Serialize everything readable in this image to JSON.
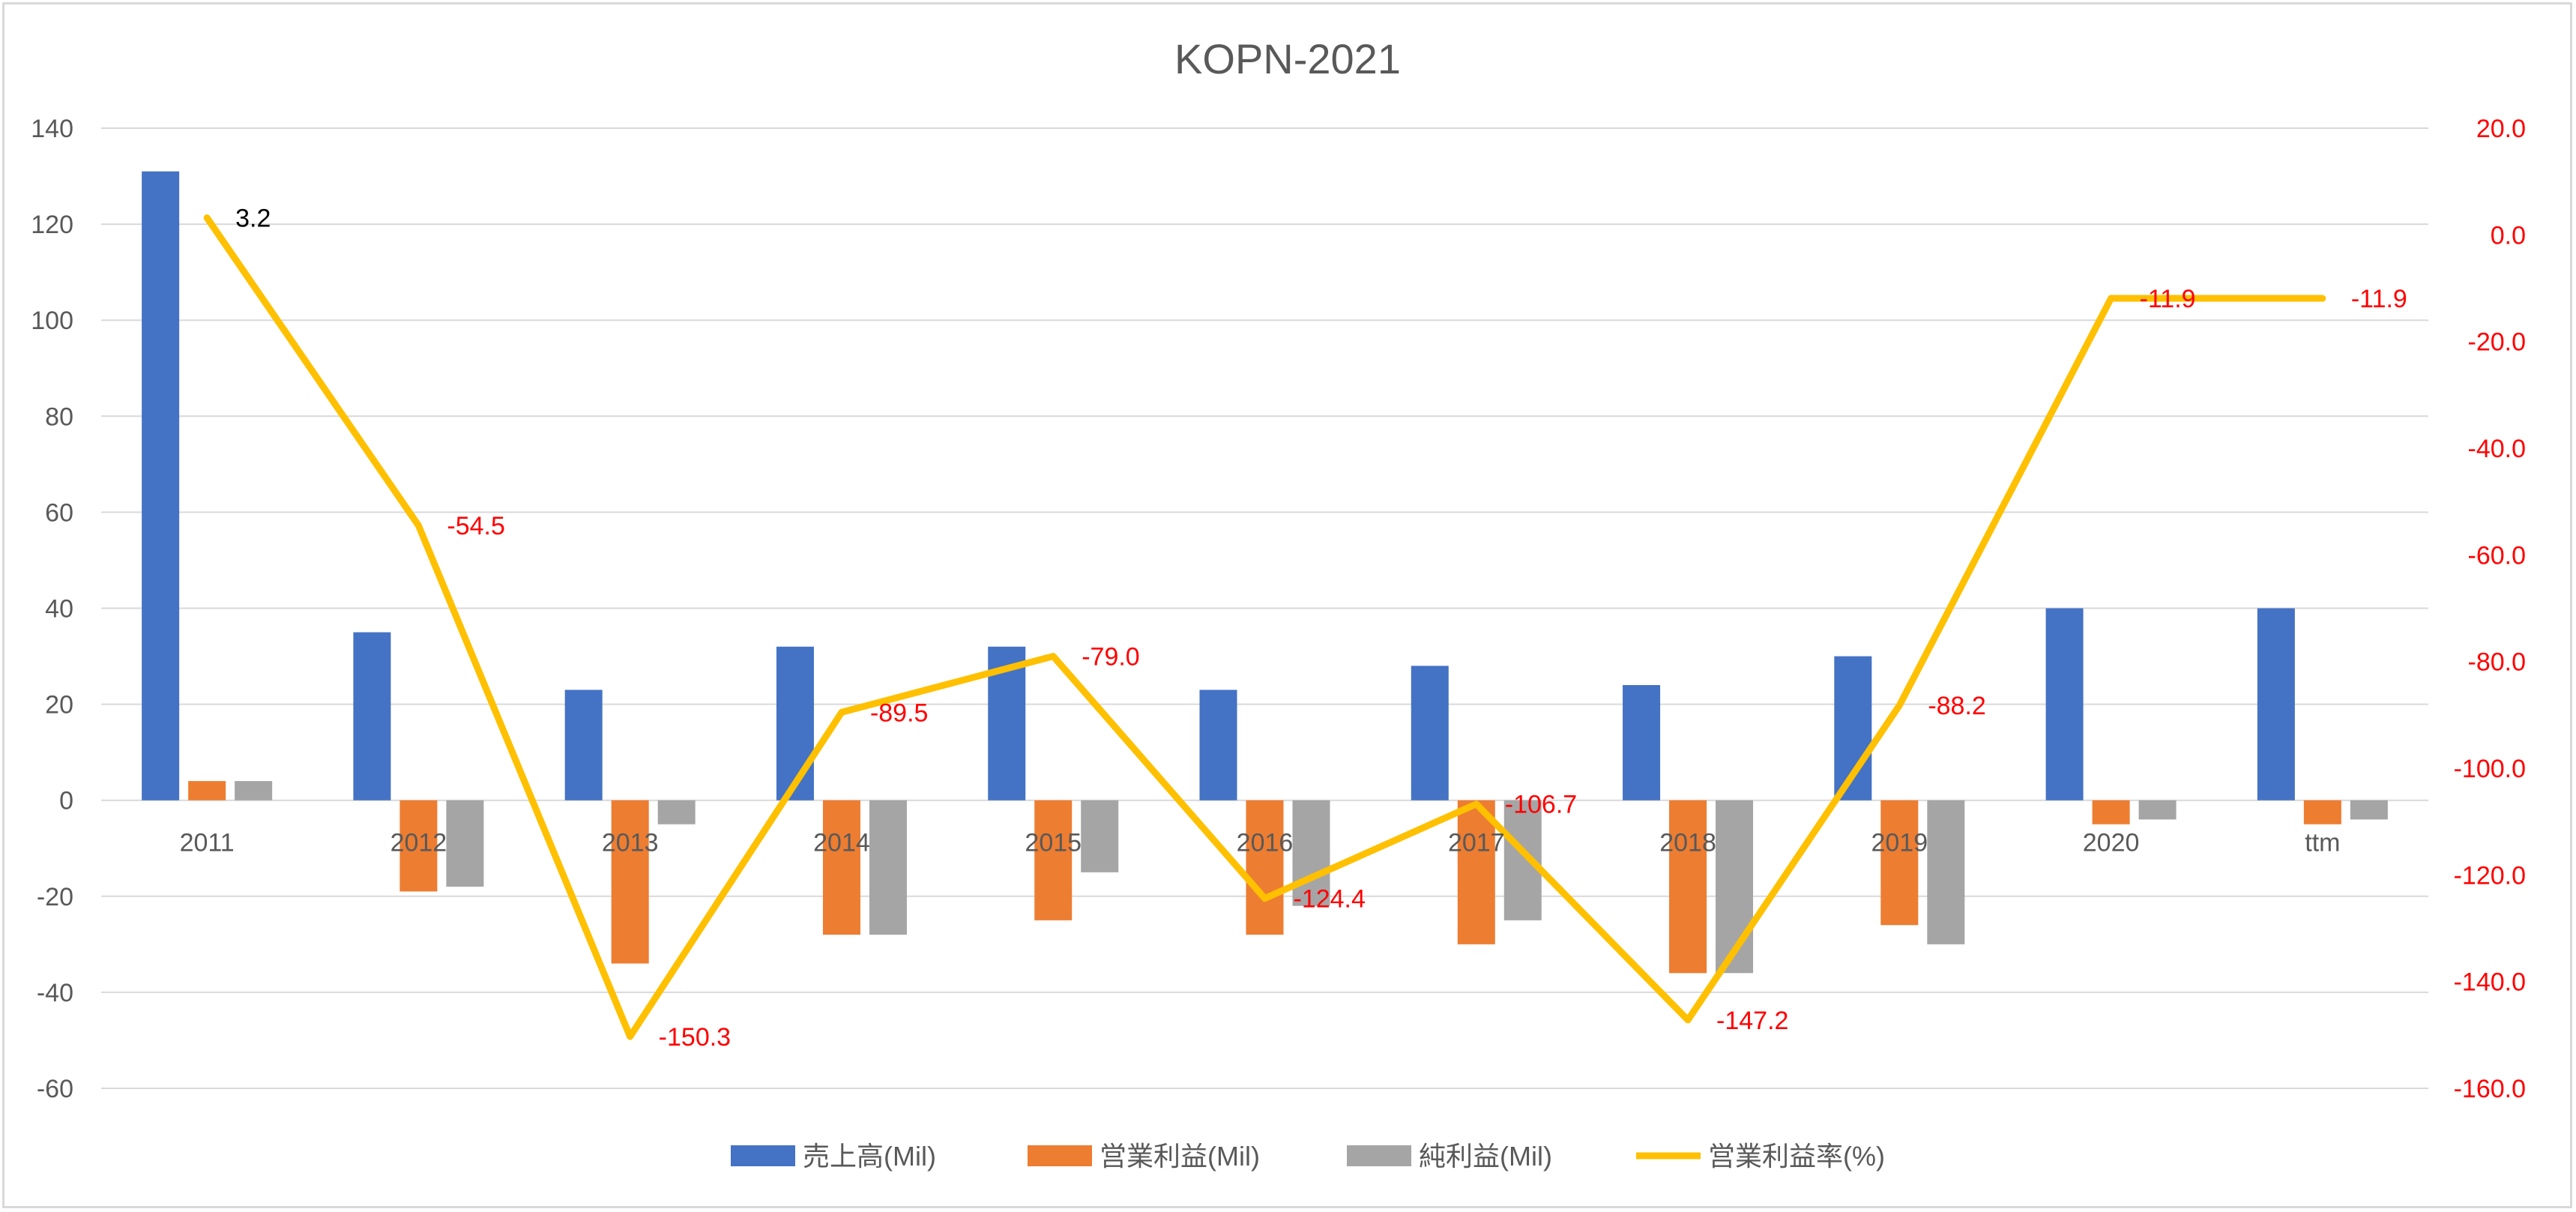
{
  "chart_data": {
    "type": "bar",
    "title": "KOPN-2021",
    "categories": [
      "2011",
      "2012",
      "2013",
      "2014",
      "2015",
      "2016",
      "2017",
      "2018",
      "2019",
      "2020",
      "ttm"
    ],
    "y_left": {
      "min": -60,
      "max": 140,
      "step": 20,
      "ticks": [
        "140",
        "120",
        "100",
        "80",
        "60",
        "40",
        "20",
        "0",
        "-20",
        "-40",
        "-60"
      ]
    },
    "y_right": {
      "min": -160,
      "max": 20,
      "step": 20,
      "ticks": [
        "20.0",
        "0.0",
        "-20.0",
        "-40.0",
        "-60.0",
        "-80.0",
        "-100.0",
        "-120.0",
        "-140.0",
        "-160.0"
      ]
    },
    "grid": true,
    "legend_position": "bottom",
    "series": [
      {
        "name": "売上高(Mil)",
        "type": "bar",
        "axis": "left",
        "color": "#4472c4",
        "values": [
          131,
          35,
          23,
          32,
          32,
          23,
          28,
          24,
          30,
          40,
          40
        ]
      },
      {
        "name": "営業利益(Mil)",
        "type": "bar",
        "axis": "left",
        "color": "#ed7d31",
        "values": [
          4,
          -19,
          -34,
          -28,
          -25,
          -28,
          -30,
          -36,
          -26,
          -5,
          -5
        ]
      },
      {
        "name": "純利益(Mil)",
        "type": "bar",
        "axis": "left",
        "color": "#a5a5a5",
        "values": [
          4,
          -18,
          -5,
          -28,
          -15,
          -22,
          -25,
          -36,
          -30,
          -4,
          -4
        ]
      },
      {
        "name": "営業利益率(%)",
        "type": "line",
        "axis": "right",
        "color": "#ffc000",
        "values": [
          3.2,
          -54.5,
          -150.3,
          -89.5,
          -79.0,
          -124.4,
          -106.7,
          -147.2,
          -88.2,
          -11.9,
          -11.9
        ],
        "labels": [
          "3.2",
          "-54.5",
          "-150.3",
          "-89.5",
          "-79.0",
          "-124.4",
          "-106.7",
          "-147.2",
          "-88.2",
          "-11.9",
          "-11.9"
        ],
        "label_colors": [
          "#000000",
          "#ff0000",
          "#ff0000",
          "#ff0000",
          "#ff0000",
          "#ff0000",
          "#ff0000",
          "#ff0000",
          "#ff0000",
          "#ff0000",
          "#ff0000"
        ]
      }
    ]
  }
}
